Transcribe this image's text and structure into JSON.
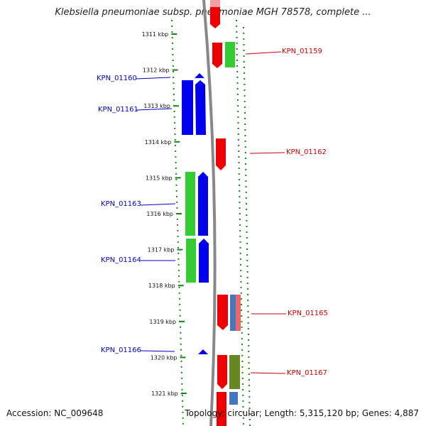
{
  "title": "Klebsiella pneumoniae subsp. pneumoniae MGH 78578, complete ...",
  "footer": {
    "accession": "Accession: NC_009648",
    "summary": "Topology: circular; Length: 5,315,120 bp; Genes: 4,887"
  },
  "colors": {
    "forward_label": "#0000cc",
    "reverse_label": "#cc0000",
    "blue_gene": "#0000ee",
    "red_gene": "#ee0000",
    "green_gene": "#33cc33",
    "olive_gene": "#668822",
    "steel_gene": "#4477bb",
    "tick_green": "#118811"
  },
  "axis": {
    "unit": "kbp",
    "ticks": [
      {
        "kbp": 1311,
        "label": "1311 kbp"
      },
      {
        "kbp": 1312,
        "label": "1312 kbp"
      },
      {
        "kbp": 1313,
        "label": "1313 kbp"
      },
      {
        "kbp": 1314,
        "label": "1314 kbp"
      },
      {
        "kbp": 1315,
        "label": "1315 kbp"
      },
      {
        "kbp": 1316,
        "label": "1316 kbp"
      },
      {
        "kbp": 1317,
        "label": "1317 kbp"
      },
      {
        "kbp": 1318,
        "label": "1318 kbp"
      },
      {
        "kbp": 1319,
        "label": "1319 kbp"
      },
      {
        "kbp": 1320,
        "label": "1320 kbp"
      },
      {
        "kbp": 1321,
        "label": "1321 kbp"
      }
    ]
  },
  "gene_labels": [
    {
      "id": "KPN_01159",
      "text": "KPN_01159",
      "strand": "reverse"
    },
    {
      "id": "KPN_01160",
      "text": "KPN_01160",
      "strand": "forward"
    },
    {
      "id": "KPN_01161",
      "text": "KPN_01161",
      "strand": "forward"
    },
    {
      "id": "KPN_01162",
      "text": "KPN_01162",
      "strand": "reverse"
    },
    {
      "id": "KPN_01163",
      "text": "KPN_01163",
      "strand": "forward"
    },
    {
      "id": "KPN_01164",
      "text": "KPN_01164",
      "strand": "forward"
    },
    {
      "id": "KPN_01165",
      "text": "KPN_01165",
      "strand": "reverse"
    },
    {
      "id": "KPN_01166",
      "text": "KPN_01166",
      "strand": "forward"
    },
    {
      "id": "KPN_01167",
      "text": "KPN_01167",
      "strand": "reverse"
    }
  ]
}
